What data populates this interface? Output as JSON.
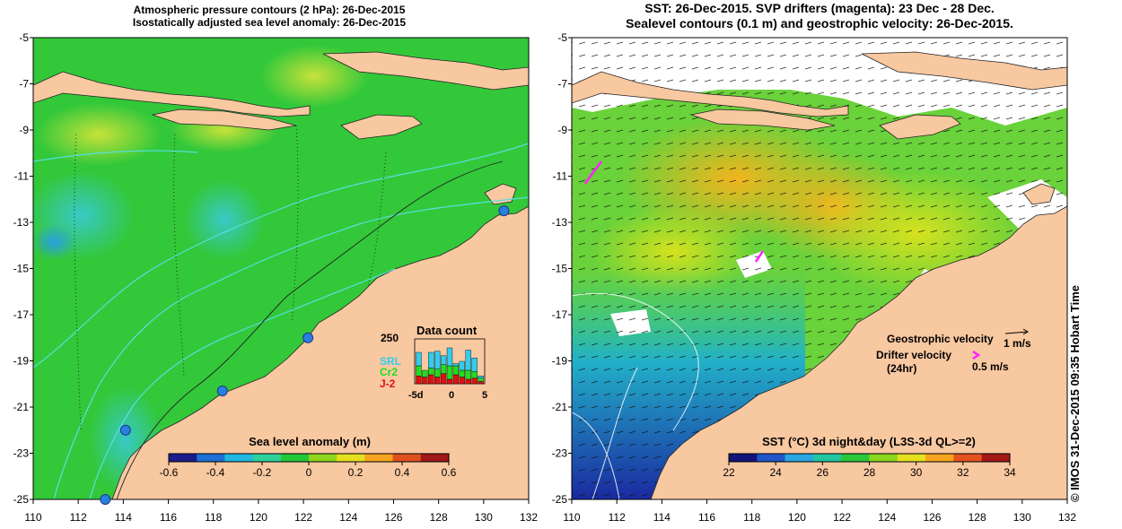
{
  "left_panel": {
    "title_line1": "Atmospheric pressure contours (2 hPa): 26-Dec-2015",
    "title_line2": "Isostatically adjusted sea level anomaly: 26-Dec-2015",
    "y_ticks": [
      "-5",
      "-7",
      "-9",
      "-11",
      "-13",
      "-15",
      "-17",
      "-19",
      "-21",
      "-23",
      "-25"
    ],
    "x_ticks": [
      "110",
      "112",
      "114",
      "116",
      "118",
      "120",
      "122",
      "124",
      "126",
      "128",
      "130",
      "132"
    ],
    "colorbar": {
      "title": "Sea level anomaly (m)",
      "ticks": [
        "-0.6",
        "-0.4",
        "-0.2",
        "0",
        "0.2",
        "0.4",
        "0.6"
      ],
      "colors": [
        "#1c1c8a",
        "#1e6fd6",
        "#22b8e0",
        "#2ed19a",
        "#22c838",
        "#8fd61e",
        "#e6e01e",
        "#f5a51e",
        "#e0501e",
        "#a01818"
      ]
    },
    "data_count": {
      "title": "Data count",
      "max_label": "250",
      "series": [
        {
          "name": "SRL",
          "color": "#33ccee"
        },
        {
          "name": "Cr2",
          "color": "#22dd22"
        },
        {
          "name": "J-2",
          "color": "#dd1111"
        }
      ],
      "x_ticks": [
        "-5d",
        "0",
        "5"
      ],
      "bars": [
        {
          "j2": 35,
          "cr2": 45,
          "srl": 60
        },
        {
          "j2": 30,
          "cr2": 30,
          "srl": 0
        },
        {
          "j2": 40,
          "cr2": 30,
          "srl": 70
        },
        {
          "j2": 30,
          "cr2": 35,
          "srl": 80
        },
        {
          "j2": 45,
          "cr2": 40,
          "srl": 40
        },
        {
          "j2": 20,
          "cr2": 60,
          "srl": 80
        },
        {
          "j2": 40,
          "cr2": 40,
          "srl": 10
        },
        {
          "j2": 30,
          "cr2": 30,
          "srl": 40
        },
        {
          "j2": 20,
          "cr2": 40,
          "srl": 90
        },
        {
          "j2": 25,
          "cr2": 30,
          "srl": 60
        },
        {
          "j2": 10,
          "cr2": 15,
          "srl": 10
        }
      ]
    },
    "tide_gauges": [
      {
        "lon": 130.9,
        "lat": -12.5
      },
      {
        "lon": 122.2,
        "lat": -18.0
      },
      {
        "lon": 118.4,
        "lat": -20.3
      },
      {
        "lon": 114.1,
        "lat": -22.0
      },
      {
        "lon": 113.2,
        "lat": -25.0
      }
    ]
  },
  "right_panel": {
    "title_line1": "SST: 26-Dec-2015. SVP drifters (magenta): 23 Dec - 28 Dec.",
    "title_line2": "Sealevel contours (0.1 m) and geostrophic velocity: 26-Dec-2015.",
    "y_ticks": [
      "-5",
      "-7",
      "-9",
      "-11",
      "-13",
      "-15",
      "-17",
      "-19",
      "-21",
      "-23",
      "-25"
    ],
    "x_ticks": [
      "110",
      "112",
      "114",
      "116",
      "118",
      "120",
      "122",
      "124",
      "126",
      "128",
      "130",
      "132"
    ],
    "colorbar": {
      "title": "SST (°C) 3d night&day (L3S-3d QL>=2)",
      "ticks": [
        "22",
        "24",
        "26",
        "28",
        "30",
        "32",
        "34"
      ],
      "colors": [
        "#14147a",
        "#1f56c8",
        "#2aa6e0",
        "#22c6a0",
        "#28c83a",
        "#8cd61e",
        "#e6e01e",
        "#f5a51e",
        "#e4521e",
        "#a41818"
      ]
    },
    "legend": {
      "geostrophic_label": "Geostrophic velocity",
      "geostrophic_scale": "1 m/s",
      "drifter_label": "Drifter velocity",
      "drifter_sub": "(24hr)",
      "drifter_scale": "0.5 m/s",
      "drifter_color": "#ff22ff"
    }
  },
  "colors": {
    "land": "#f8c8a0",
    "ocean_left": "#33c83a",
    "ocean_right": "#6ad23a",
    "contour": "#55e0e0"
  },
  "credit": "© IMOS 31-Dec-2015 09:35 Hobart Time"
}
